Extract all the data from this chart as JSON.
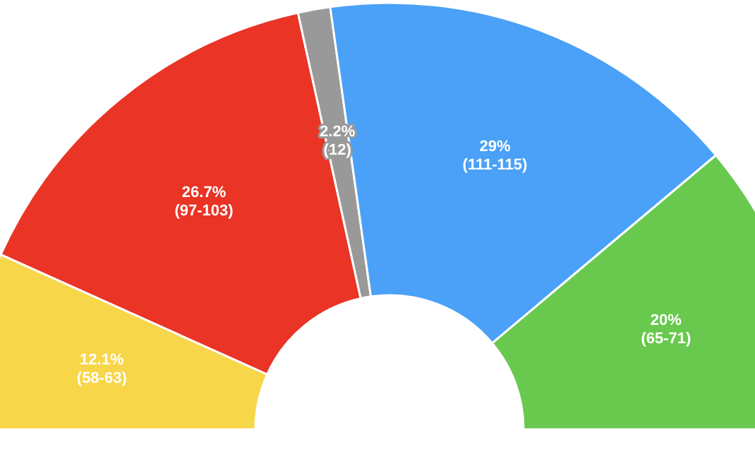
{
  "chart_data": {
    "type": "donut",
    "categories": [
      null,
      null,
      null,
      null,
      null
    ],
    "values": [
      12.1,
      26.7,
      2.2,
      29,
      20
    ],
    "colors": [
      "#f8d64a",
      "#e93426",
      "#999999",
      "#4aa1f7",
      "#68c94e"
    ],
    "value_labels": [
      "12.1%\n(58-63)",
      "26.7%\n(97-103)",
      "2.2%\n(12)",
      "29%\n(111-115)",
      "20%\n(65-71)"
    ]
  }
}
